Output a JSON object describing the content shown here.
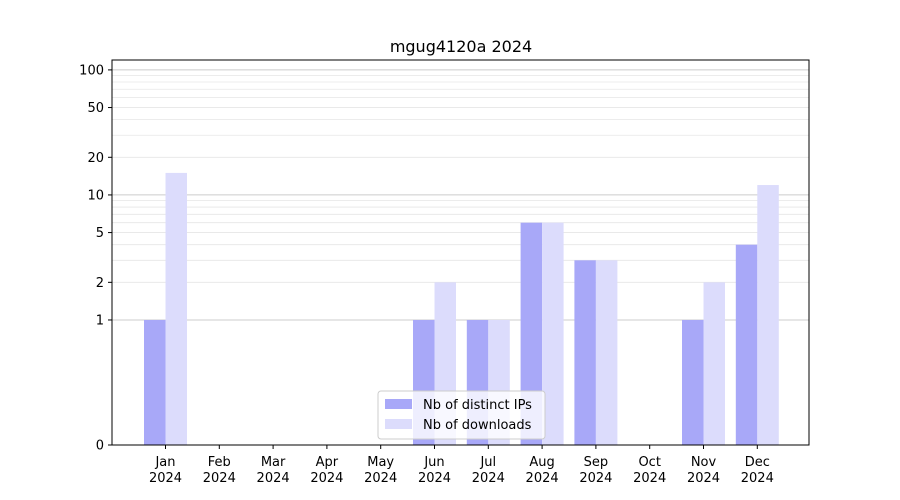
{
  "chart_data": {
    "type": "bar",
    "title": "mgug4120a 2024",
    "xlabel": "",
    "ylabel": "",
    "yscale": "symlog",
    "ylim": [
      0,
      120
    ],
    "ytick_values": [
      0,
      1,
      2,
      5,
      10,
      20,
      50,
      100
    ],
    "ytick_labels": [
      "0",
      "1",
      "2",
      "5",
      "10",
      "20",
      "50",
      "100"
    ],
    "grid": "horizontal",
    "legend_position": "bottom-center",
    "categories": [
      "Jan\n2024",
      "Feb\n2024",
      "Mar\n2024",
      "Apr\n2024",
      "May\n2024",
      "Jun\n2024",
      "Jul\n2024",
      "Aug\n2024",
      "Sep\n2024",
      "Oct\n2024",
      "Nov\n2024",
      "Dec\n2024"
    ],
    "series": [
      {
        "name": "Nb of distinct IPs",
        "color": "#a8a8f8",
        "values": [
          1,
          0,
          0,
          0,
          0,
          1,
          1,
          6,
          3,
          0,
          1,
          4
        ]
      },
      {
        "name": "Nb of downloads",
        "color": "#dcdcfc",
        "values": [
          15,
          0,
          0,
          0,
          0,
          2,
          1,
          6,
          3,
          0,
          2,
          12
        ]
      }
    ]
  }
}
